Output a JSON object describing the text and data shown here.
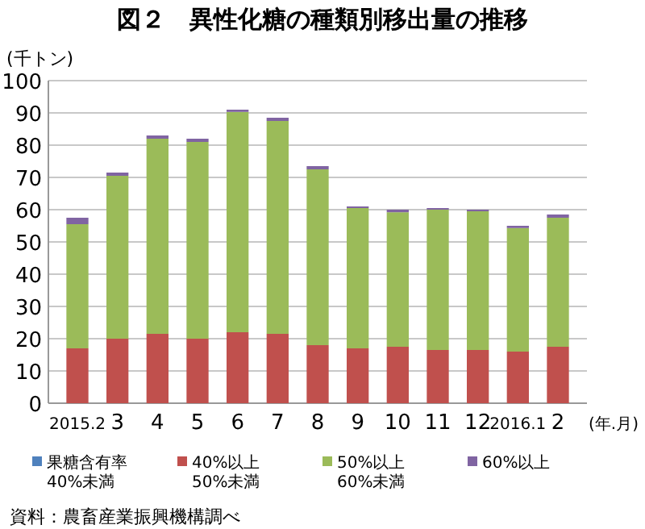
{
  "chart_data": {
    "type": "bar",
    "stacked": true,
    "title": "図２　異性化糖の種類別移出量の推移",
    "ylabel": "(千トン)",
    "xlabel": "(年.月)",
    "categories": [
      "2015.2",
      "3",
      "4",
      "5",
      "6",
      "7",
      "8",
      "9",
      "10",
      "11",
      "12",
      "2016.1",
      "2"
    ],
    "series": [
      {
        "name": "果糖含有率\n40%未満",
        "color": "#4f81bd",
        "values": [
          0,
          0,
          0,
          0,
          0,
          0,
          0,
          0,
          0,
          0,
          0,
          0,
          0
        ]
      },
      {
        "name": "40%以上\n50%未満",
        "color": "#c0504d",
        "values": [
          17,
          20,
          21.5,
          20,
          22,
          21.5,
          18,
          17,
          17.5,
          16.5,
          16.5,
          16,
          17.5
        ]
      },
      {
        "name": "50%以上\n60%未満",
        "color": "#9bbb59",
        "values": [
          38.5,
          50.5,
          60.5,
          61,
          68.3,
          66,
          54.5,
          43.5,
          41.7,
          43.5,
          43,
          38.3,
          40
        ]
      },
      {
        "name": "60%以上",
        "color": "#8064a2",
        "values": [
          2,
          1,
          1,
          1,
          0.7,
          1,
          1,
          0.5,
          0.8,
          0.5,
          0.5,
          0.7,
          1
        ]
      }
    ],
    "ylim": [
      0,
      100
    ],
    "yticks": [
      0,
      10,
      20,
      30,
      40,
      50,
      60,
      70,
      80,
      90,
      100
    ],
    "grid": "y",
    "legend": "bottom",
    "annotations": [
      "資料：農畜産業振興機構調べ"
    ]
  }
}
